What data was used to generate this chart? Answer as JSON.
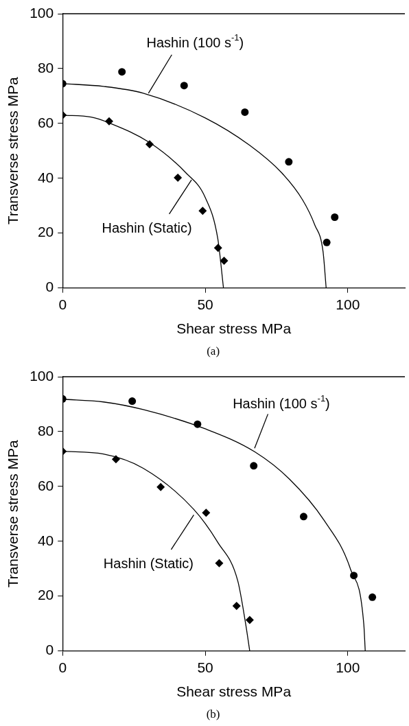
{
  "chart_data": [
    {
      "type": "scatter",
      "xlabel": "Shear stress MPa",
      "ylabel": "Transverse stress MPa",
      "xlim": [
        0,
        120
      ],
      "ylim": [
        0,
        100
      ],
      "xticks": [
        0,
        50,
        100
      ],
      "yticks": [
        0,
        20,
        40,
        60,
        80,
        100
      ],
      "series": [
        {
          "type": "scatter",
          "marker": "circle",
          "color": "#000000",
          "x": [
            0,
            20.8,
            42.6,
            63.9,
            79.3,
            95.4,
            92.6
          ],
          "values": [
            74.5,
            78.8,
            73.8,
            64.1,
            46,
            25.8,
            16.6
          ]
        },
        {
          "type": "scatter",
          "marker": "diamond",
          "color": "#000000",
          "x": [
            0,
            16.3,
            30.5,
            40.4,
            49.1,
            54.5,
            56.6
          ],
          "values": [
            63,
            60.8,
            52.4,
            40.2,
            28.1,
            14.6,
            9.9
          ]
        },
        {
          "type": "line",
          "marker": "none",
          "line_style": "solid",
          "color": "#000000",
          "x": [
            0,
            14.3,
            28.3,
            50,
            65.6,
            76.8,
            84.2,
            88.4,
            91.3,
            92.4
          ],
          "values": [
            74.5,
            73.5,
            71,
            62,
            52,
            42,
            32,
            23,
            13.3,
            0
          ]
        },
        {
          "type": "line",
          "marker": "none",
          "line_style": "solid",
          "color": "#000000",
          "x": [
            0,
            10,
            16.3,
            30.5,
            43.2,
            50,
            54.4,
            56.4
          ],
          "values": [
            63,
            62.3,
            60.2,
            53,
            42,
            33,
            18,
            0
          ]
        }
      ],
      "annotations": [
        {
          "text": "Hashin (100 s$^{-1}$)",
          "x": 30.1,
          "y": 71
        },
        {
          "text": "Hashin (Static)",
          "x": 45.2,
          "y": 39.4
        },
        "(a)"
      ]
    },
    {
      "type": "scatter",
      "xlabel": "Shear stress MPa",
      "ylabel": "Transverse stress MPa",
      "xlim": [
        0,
        120
      ],
      "ylim": [
        0,
        100
      ],
      "xticks": [
        0,
        50,
        100
      ],
      "yticks": [
        0,
        20,
        40,
        60,
        80,
        100
      ],
      "series": [
        {
          "type": "scatter",
          "marker": "circle",
          "color": "#000000",
          "x": [
            0,
            24.4,
            47.3,
            67,
            84.5,
            102.1,
            108.6
          ],
          "values": [
            91.9,
            91.1,
            82.7,
            67.5,
            49,
            27.5,
            19.6
          ]
        },
        {
          "type": "scatter",
          "marker": "diamond",
          "color": "#000000",
          "x": [
            0,
            18.7,
            34.4,
            50.3,
            54.9,
            61,
            65.6
          ],
          "values": [
            72.8,
            69.9,
            59.8,
            50.4,
            32,
            16.4,
            11.3
          ]
        },
        {
          "type": "line",
          "marker": "none",
          "line_style": "solid",
          "color": "#000000",
          "x": [
            0,
            14.3,
            28.3,
            50,
            67.4,
            79.6,
            91.7,
            101,
            105.6,
            106.1
          ],
          "values": [
            91.8,
            90.8,
            88,
            81,
            72.6,
            62.6,
            47.6,
            29.6,
            9.7,
            0
          ]
        },
        {
          "type": "line",
          "marker": "none",
          "line_style": "solid",
          "color": "#000000",
          "x": [
            0,
            14.3,
            28.3,
            46,
            54.4,
            61.4,
            64.2,
            65.6
          ],
          "values": [
            72.8,
            71.8,
            66.6,
            51.6,
            39.6,
            25.6,
            9.7,
            0
          ]
        }
      ],
      "annotations": [
        {
          "text": "Hashin (100 s$^{-1}$)",
          "x": 67.3,
          "y": 73.9
        },
        {
          "text": "Hashin (Static)",
          "x": 46,
          "y": 49.6
        },
        "(b)"
      ]
    }
  ]
}
